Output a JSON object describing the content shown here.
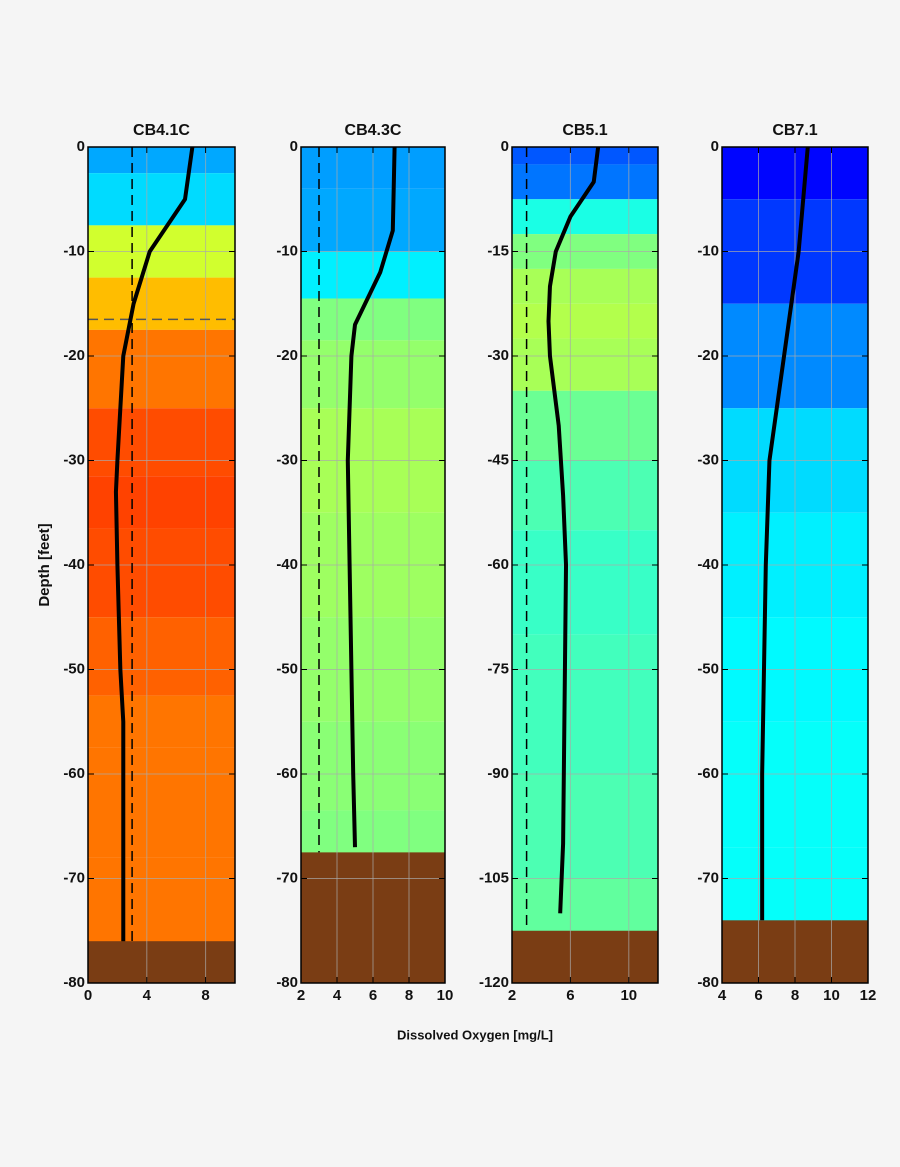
{
  "figure": {
    "ylabel": "Depth [feet]",
    "xlabel": "Dissolved Oxygen [mg/L]"
  },
  "chart_data": [
    {
      "type": "profile",
      "title": "CB4.1C",
      "xlim": [
        0,
        10
      ],
      "xticks": [
        0,
        4,
        8
      ],
      "ylim": [
        -80,
        0
      ],
      "yticks": [
        0,
        -10,
        -20,
        -30,
        -40,
        -50,
        -60,
        -70,
        -80
      ],
      "grid": true,
      "clim": [
        0,
        10
      ],
      "threshold": 3,
      "pycnocline": -16.5,
      "bottom_depth": -76,
      "bottom_color": "#7a3d14",
      "series": [
        {
          "color": "#000000",
          "x": [
            7.1,
            6.6,
            4.2,
            3.1,
            2.4,
            2.0,
            1.9,
            2.0,
            2.2,
            2.4,
            2.4,
            2.4
          ],
          "values": [
            0,
            -5,
            -10,
            -15,
            -20,
            -30,
            -33,
            -40,
            -50,
            -55,
            -60,
            -76
          ]
        }
      ]
    },
    {
      "type": "profile",
      "title": "CB4.3C",
      "xlim": [
        2,
        10
      ],
      "xticks": [
        2,
        4,
        6,
        8,
        10
      ],
      "ylim": [
        -80,
        0
      ],
      "yticks": [
        0,
        -10,
        -20,
        -30,
        -40,
        -50,
        -60,
        -70,
        -80
      ],
      "grid": true,
      "clim": [
        0,
        10
      ],
      "threshold": 3,
      "bottom_depth": -67.5,
      "bottom_color": "#7a3d14",
      "series": [
        {
          "color": "#000000",
          "x": [
            7.2,
            7.1,
            6.4,
            5.0,
            4.8,
            4.6,
            4.7,
            4.8,
            4.9,
            5.0
          ],
          "values": [
            0,
            -8,
            -12,
            -17,
            -20,
            -30,
            -40,
            -50,
            -60,
            -67
          ]
        }
      ]
    },
    {
      "type": "profile",
      "title": "CB5.1",
      "xlim": [
        2,
        12
      ],
      "xticks": [
        2,
        6,
        10
      ],
      "ylim": [
        -120,
        0
      ],
      "yticks": [
        0,
        -15,
        -30,
        -45,
        -60,
        -75,
        -90,
        -105,
        -120
      ],
      "grid": true,
      "clim": [
        0,
        10
      ],
      "threshold": 3,
      "bottom_depth": -112.5,
      "bottom_color": "#7a3d14",
      "series": [
        {
          "color": "#000000",
          "x": [
            7.9,
            7.6,
            6.0,
            5.0,
            4.6,
            4.5,
            4.6,
            5.2,
            5.5,
            5.7,
            5.6,
            5.5,
            5.3
          ],
          "values": [
            0,
            -5,
            -10,
            -15,
            -20,
            -25,
            -30,
            -40,
            -50,
            -60,
            -80,
            -100,
            -110
          ]
        }
      ]
    },
    {
      "type": "profile",
      "title": "CB7.1",
      "xlim": [
        4,
        12
      ],
      "xticks": [
        4,
        6,
        8,
        10,
        12
      ],
      "ylim": [
        -80,
        0
      ],
      "yticks": [
        0,
        -10,
        -20,
        -30,
        -40,
        -50,
        -60,
        -70,
        -80
      ],
      "grid": true,
      "clim": [
        0,
        10
      ],
      "bottom_depth": -74,
      "bottom_color": "#7a3d14",
      "series": [
        {
          "color": "#000000",
          "x": [
            8.7,
            8.2,
            7.4,
            6.6,
            6.4,
            6.3,
            6.2,
            6.2
          ],
          "values": [
            0,
            -10,
            -20,
            -30,
            -40,
            -50,
            -60,
            -74
          ]
        }
      ]
    }
  ]
}
